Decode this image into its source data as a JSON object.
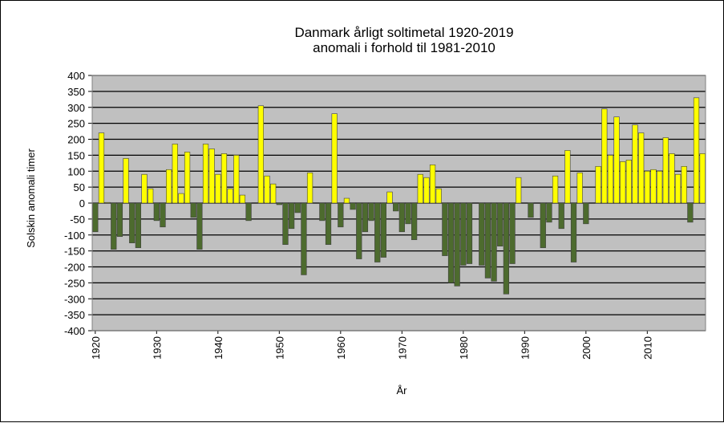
{
  "chart_data": {
    "type": "bar",
    "title": "Danmark årligt soltimetal 1920-2019",
    "subtitle": "anomali i forhold til 1981-2010",
    "xlabel": "År",
    "ylabel": "Solskin  anomali timer",
    "ylim": [
      -400,
      400
    ],
    "ytick_step": 50,
    "x_range": [
      1920,
      2019
    ],
    "xtick_labels": [
      "1920",
      "1930",
      "1940",
      "1950",
      "1960",
      "1970",
      "1980",
      "1990",
      "2000",
      "2010"
    ],
    "grid": true,
    "legend": "none",
    "colors": {
      "positive": "#ffff00",
      "negative": "#4d6b2e",
      "plot_background": "#c0c0c0",
      "gridline": "#000000"
    },
    "years": [
      1920,
      1921,
      1922,
      1923,
      1924,
      1925,
      1926,
      1927,
      1928,
      1929,
      1930,
      1931,
      1932,
      1933,
      1934,
      1935,
      1936,
      1937,
      1938,
      1939,
      1940,
      1941,
      1942,
      1943,
      1944,
      1945,
      1946,
      1947,
      1948,
      1949,
      1950,
      1951,
      1952,
      1953,
      1954,
      1955,
      1956,
      1957,
      1958,
      1959,
      1960,
      1961,
      1962,
      1963,
      1964,
      1965,
      1966,
      1967,
      1968,
      1969,
      1970,
      1971,
      1972,
      1973,
      1974,
      1975,
      1976,
      1977,
      1978,
      1979,
      1980,
      1981,
      1982,
      1983,
      1984,
      1985,
      1986,
      1987,
      1988,
      1989,
      1990,
      1991,
      1992,
      1993,
      1994,
      1995,
      1996,
      1997,
      1998,
      1999,
      2000,
      2001,
      2002,
      2003,
      2004,
      2005,
      2006,
      2007,
      2008,
      2009,
      2010,
      2011,
      2012,
      2013,
      2014,
      2015,
      2016,
      2017,
      2018,
      2019
    ],
    "values": [
      -90,
      220,
      2,
      -145,
      -105,
      140,
      -125,
      -140,
      90,
      45,
      -55,
      -75,
      105,
      185,
      30,
      160,
      -45,
      -145,
      185,
      170,
      90,
      155,
      45,
      150,
      25,
      -55,
      0,
      305,
      85,
      60,
      -5,
      -130,
      -80,
      -30,
      -225,
      95,
      0,
      -55,
      -130,
      280,
      -75,
      15,
      -20,
      -175,
      -90,
      -55,
      -185,
      -170,
      35,
      -25,
      -90,
      -65,
      -115,
      90,
      80,
      120,
      45,
      -165,
      -250,
      -260,
      -195,
      -190,
      0,
      -195,
      -235,
      -245,
      -135,
      -285,
      -190,
      80,
      0,
      -45,
      0,
      -140,
      -60,
      85,
      -80,
      165,
      -185,
      95,
      -65,
      0,
      115,
      295,
      150,
      270,
      130,
      135,
      245,
      220,
      100,
      105,
      100,
      205,
      155,
      90,
      115,
      -60,
      330,
      155
    ]
  }
}
